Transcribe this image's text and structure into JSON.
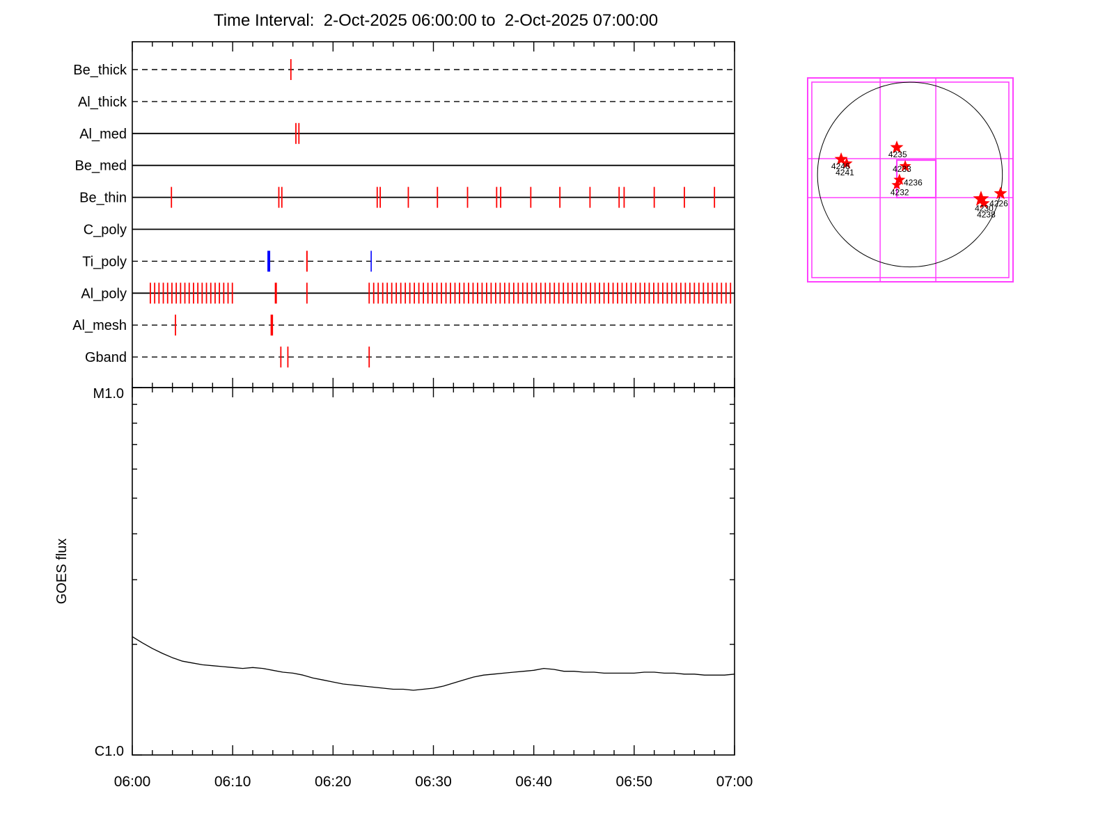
{
  "title": "Time Interval:  2-Oct-2025 06:00:00 to  2-Oct-2025 07:00:00",
  "colors": {
    "exposure_red": "#ff0000",
    "exposure_blue": "#0000ff",
    "fov_magenta": "#ff40ff",
    "star_red": "#ff0000",
    "axis_black": "#000000"
  },
  "x_axis": {
    "tick_labels": [
      "06:00",
      "06:10",
      "06:20",
      "06:30",
      "06:40",
      "06:50",
      "07:00"
    ],
    "tick_minutes": [
      0,
      10,
      20,
      30,
      40,
      50,
      60
    ],
    "minor_step_min": 2,
    "major_step_min": 10
  },
  "chart_data": [
    {
      "type": "event-timeline",
      "title": "XRT filter exposure timeline",
      "x_unit": "minutes since 06:00:00 2-Oct-2025",
      "xlim": [
        0,
        60
      ],
      "rows": [
        {
          "label": "Be_thick",
          "line_style": "dashed",
          "events": [
            15.8
          ]
        },
        {
          "label": "Al_thick",
          "line_style": "dashed",
          "events": []
        },
        {
          "label": "Al_med",
          "line_style": "solid",
          "events": [
            16.3,
            16.6
          ]
        },
        {
          "label": "Be_med",
          "line_style": "solid",
          "events": []
        },
        {
          "label": "Be_thin",
          "line_style": "solid",
          "events": [
            3.9,
            14.6,
            14.9,
            24.4,
            24.7,
            27.5,
            30.4,
            33.4,
            36.3,
            36.7,
            39.7,
            42.6,
            45.6,
            48.5,
            49.0,
            52.0,
            55.0,
            58.0
          ]
        },
        {
          "label": "C_poly",
          "line_style": "solid",
          "events": []
        },
        {
          "label": "Ti_poly",
          "line_style": "dashed",
          "events": [
            {
              "t": 13.6,
              "color": "blue",
              "w": 4
            },
            {
              "t": 17.4,
              "color": "red",
              "w": 2
            },
            {
              "t": 23.8,
              "color": "blue",
              "w": 1.6
            }
          ]
        },
        {
          "label": "Al_poly",
          "line_style": "solid",
          "events": [
            1.8,
            2.23,
            2.66,
            3.09,
            3.52,
            3.95,
            4.38,
            4.81,
            5.24,
            5.67,
            6.1,
            6.53,
            6.96,
            7.39,
            7.82,
            8.25,
            8.68,
            9.11,
            9.54,
            9.97,
            {
              "t": 14.3,
              "w": 3
            },
            17.4,
            23.6,
            24.05,
            24.5,
            24.95,
            25.4,
            25.85,
            26.3,
            26.75,
            27.2,
            27.65,
            28.1,
            28.55,
            29.0,
            29.45,
            29.9,
            30.35,
            30.8,
            31.25,
            31.7,
            32.15,
            32.6,
            33.05,
            33.5,
            33.95,
            34.4,
            34.85,
            35.3,
            35.75,
            36.2,
            36.65,
            37.1,
            37.55,
            38.0,
            38.45,
            38.9,
            39.35,
            39.8,
            40.25,
            40.7,
            41.15,
            41.6,
            42.05,
            42.5,
            42.95,
            43.4,
            43.85,
            44.3,
            44.75,
            45.2,
            45.65,
            46.1,
            46.55,
            47.0,
            47.45,
            47.9,
            48.35,
            48.8,
            49.25,
            49.7,
            50.15,
            50.6,
            51.05,
            51.5,
            51.95,
            52.4,
            52.85,
            53.3,
            53.75,
            54.2,
            54.65,
            55.1,
            55.55,
            56.0,
            56.45,
            56.9,
            57.35,
            57.8,
            58.25,
            58.7,
            59.15,
            59.6
          ]
        },
        {
          "label": "Al_mesh",
          "line_style": "dashed",
          "events": [
            4.3,
            {
              "t": 13.9,
              "w": 3.5
            }
          ]
        },
        {
          "label": "Gband",
          "line_style": "dashed",
          "events": [
            14.8,
            15.5,
            23.6
          ]
        }
      ]
    },
    {
      "type": "line",
      "name": "GOES flux",
      "ylabel": "GOES flux",
      "yscale": "log",
      "y_bottom_label": "C1.0",
      "y_top_label": "M1.0",
      "ylim_wm2": [
        1e-06,
        1e-05
      ],
      "x_start_min": 0,
      "x_step_min": 1,
      "flux_c_units": [
        2.1,
        2.02,
        1.95,
        1.89,
        1.84,
        1.8,
        1.78,
        1.76,
        1.75,
        1.74,
        1.73,
        1.72,
        1.73,
        1.72,
        1.7,
        1.68,
        1.67,
        1.65,
        1.62,
        1.6,
        1.58,
        1.56,
        1.55,
        1.54,
        1.53,
        1.52,
        1.51,
        1.51,
        1.5,
        1.51,
        1.52,
        1.54,
        1.57,
        1.6,
        1.63,
        1.65,
        1.66,
        1.67,
        1.68,
        1.69,
        1.7,
        1.72,
        1.71,
        1.69,
        1.69,
        1.68,
        1.68,
        1.67,
        1.67,
        1.67,
        1.67,
        1.68,
        1.68,
        1.67,
        1.67,
        1.66,
        1.66,
        1.65,
        1.65,
        1.65,
        1.66
      ]
    }
  ],
  "solar_map": {
    "grid_vertical_f": [
      0.353,
      0.624
    ],
    "grid_horizontal_f": [
      0.396,
      0.587
    ],
    "inner_box_f": [
      0.434,
      0.403,
      0.624,
      0.587
    ],
    "solar_limb_f": {
      "cx": 0.498,
      "cy": 0.474,
      "r": 0.45
    },
    "regions": [
      {
        "noaa": "4246",
        "star_f": [
          0.163,
          0.399
        ],
        "star_size": 10,
        "label_f": [
          0.115,
          0.447
        ]
      },
      {
        "noaa": "4241",
        "star_f": [
          0.19,
          0.42
        ],
        "star_size": 9,
        "label_f": [
          0.136,
          0.478
        ]
      },
      {
        "noaa": "4235",
        "star_f": [
          0.434,
          0.341
        ],
        "star_size": 10,
        "label_f": [
          0.393,
          0.389
        ]
      },
      {
        "noaa": "4233",
        "star_f": [
          0.475,
          0.433
        ],
        "star_size": 9,
        "label_f": [
          0.414,
          0.461
        ]
      },
      {
        "noaa": "4236",
        "star_f": [
          0.447,
          0.5
        ],
        "star_size": 9,
        "label_f": [
          0.468,
          0.527
        ]
      },
      {
        "noaa": "4232",
        "star_f": [
          0.434,
          0.525
        ],
        "star_size": 8,
        "label_f": [
          0.403,
          0.575
        ]
      },
      {
        "noaa": "4230",
        "star_f": [
          0.844,
          0.594
        ],
        "star_size": 12,
        "label_f": [
          0.814,
          0.654
        ]
      },
      {
        "noaa": "4238",
        "star_f": [
          0.858,
          0.615
        ],
        "star_size": 9,
        "label_f": [
          0.824,
          0.685
        ]
      },
      {
        "noaa": "4226",
        "star_f": [
          0.939,
          0.567
        ],
        "star_size": 10,
        "label_f": [
          0.885,
          0.63
        ]
      }
    ]
  }
}
